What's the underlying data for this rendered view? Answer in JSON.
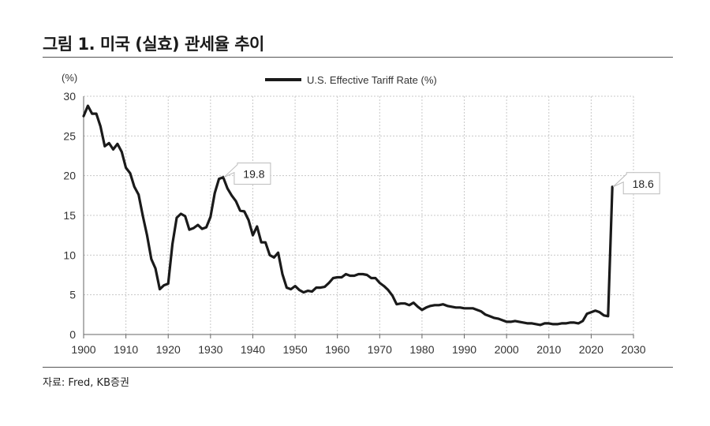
{
  "figure": {
    "title": "그림 1. 미국 (실효) 관세율 추이",
    "source": "자료: Fred, KB증권"
  },
  "chart_data": {
    "type": "line",
    "title": "",
    "xlabel": "",
    "ylabel": "(%)",
    "xlim": [
      1900,
      2030
    ],
    "ylim": [
      0,
      30
    ],
    "xticks": [
      1900,
      1910,
      1920,
      1930,
      1940,
      1950,
      1960,
      1970,
      1980,
      1990,
      2000,
      2010,
      2020,
      2030
    ],
    "yticks": [
      0,
      5,
      10,
      15,
      20,
      25,
      30
    ],
    "grid": true,
    "legend_position": "top-center",
    "colors": {
      "line": "#1a1a1a",
      "grid": "#c8c8c8",
      "callout_border": "#bbbbbb"
    },
    "series": [
      {
        "name": "U.S. Effective Tariff Rate (%)",
        "x": [
          1900,
          1901,
          1902,
          1903,
          1904,
          1905,
          1906,
          1907,
          1908,
          1909,
          1910,
          1911,
          1912,
          1913,
          1914,
          1915,
          1916,
          1917,
          1918,
          1919,
          1920,
          1921,
          1922,
          1923,
          1924,
          1925,
          1926,
          1927,
          1928,
          1929,
          1930,
          1931,
          1932,
          1933,
          1934,
          1935,
          1936,
          1937,
          1938,
          1939,
          1940,
          1941,
          1942,
          1943,
          1944,
          1945,
          1946,
          1947,
          1948,
          1949,
          1950,
          1951,
          1952,
          1953,
          1954,
          1955,
          1956,
          1957,
          1958,
          1959,
          1960,
          1961,
          1962,
          1963,
          1964,
          1965,
          1966,
          1967,
          1968,
          1969,
          1970,
          1971,
          1972,
          1973,
          1974,
          1975,
          1976,
          1977,
          1978,
          1979,
          1980,
          1981,
          1982,
          1983,
          1984,
          1985,
          1986,
          1987,
          1988,
          1989,
          1990,
          1991,
          1992,
          1993,
          1994,
          1995,
          1996,
          1997,
          1998,
          1999,
          2000,
          2001,
          2002,
          2003,
          2004,
          2005,
          2006,
          2007,
          2008,
          2009,
          2010,
          2011,
          2012,
          2013,
          2014,
          2015,
          2016,
          2017,
          2018,
          2019,
          2020,
          2021,
          2022,
          2023,
          2024,
          2025
        ],
        "values": [
          27.5,
          28.8,
          27.8,
          27.8,
          26.2,
          23.7,
          24.1,
          23.3,
          24.0,
          23.0,
          21.0,
          20.3,
          18.6,
          17.6,
          14.9,
          12.5,
          9.5,
          8.3,
          5.7,
          6.2,
          6.4,
          11.4,
          14.7,
          15.2,
          14.9,
          13.2,
          13.4,
          13.8,
          13.3,
          13.5,
          14.8,
          17.8,
          19.6,
          19.8,
          18.4,
          17.5,
          16.8,
          15.6,
          15.5,
          14.4,
          12.5,
          13.6,
          11.6,
          11.6,
          10.0,
          9.7,
          10.3,
          7.6,
          5.9,
          5.7,
          6.1,
          5.6,
          5.3,
          5.5,
          5.4,
          5.9,
          5.9,
          6.0,
          6.5,
          7.1,
          7.2,
          7.2,
          7.6,
          7.4,
          7.4,
          7.6,
          7.6,
          7.5,
          7.1,
          7.1,
          6.5,
          6.1,
          5.6,
          4.9,
          3.8,
          3.9,
          3.9,
          3.7,
          4.0,
          3.5,
          3.1,
          3.4,
          3.6,
          3.7,
          3.7,
          3.8,
          3.6,
          3.5,
          3.4,
          3.4,
          3.3,
          3.3,
          3.3,
          3.1,
          2.9,
          2.5,
          2.3,
          2.1,
          2.0,
          1.8,
          1.6,
          1.6,
          1.7,
          1.6,
          1.5,
          1.4,
          1.4,
          1.3,
          1.2,
          1.4,
          1.4,
          1.3,
          1.3,
          1.4,
          1.4,
          1.5,
          1.5,
          1.4,
          1.7,
          2.6,
          2.8,
          3.0,
          2.8,
          2.4,
          2.3,
          18.6
        ]
      }
    ],
    "annotations": [
      {
        "x": 1933,
        "y": 19.8,
        "label": "19.8"
      },
      {
        "x": 2025,
        "y": 18.6,
        "label": "18.6"
      }
    ]
  }
}
